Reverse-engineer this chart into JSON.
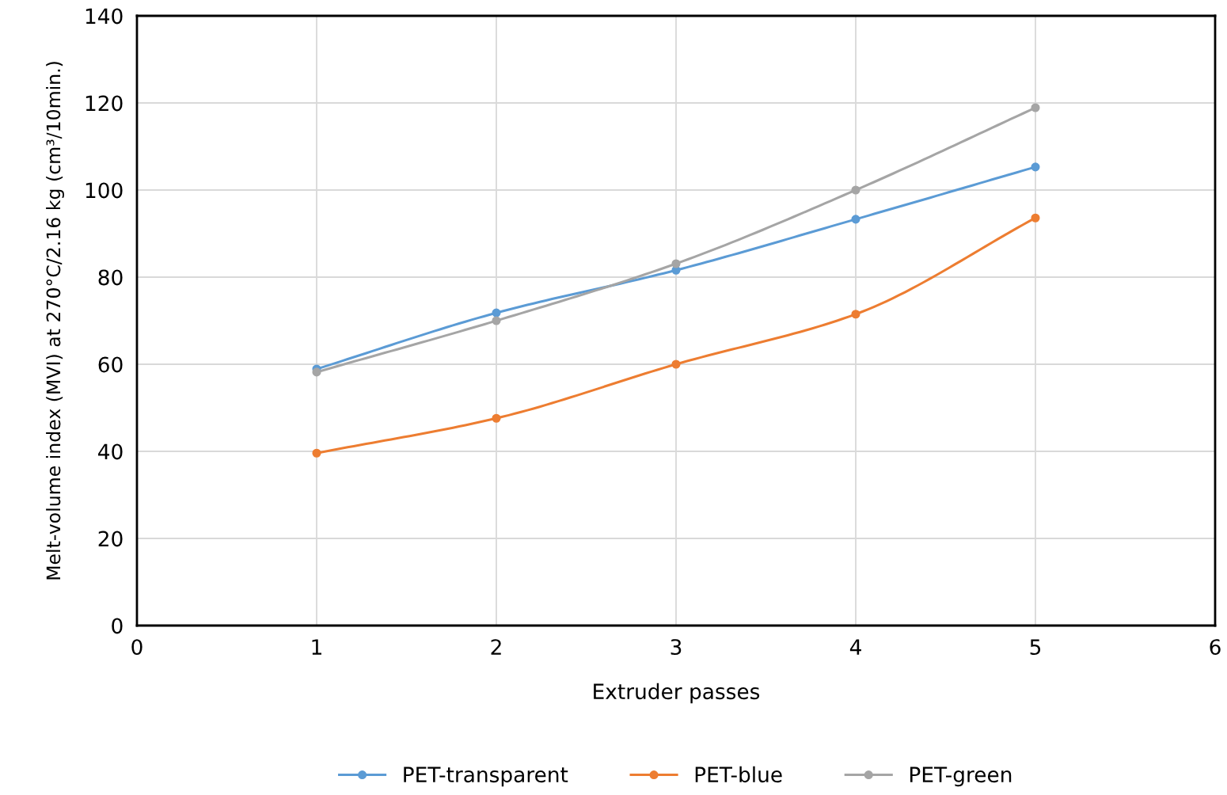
{
  "chart_data": {
    "type": "line",
    "xlabel": "Extruder passes",
    "ylabel": "Melt-volume index (MVI) at 270°C/2.16 kg (cm³/10min.)",
    "x": [
      1,
      2,
      3,
      4,
      5
    ],
    "series": [
      {
        "name": "PET-transparent",
        "color": "#5b9bd5",
        "values": [
          58.9,
          71.8,
          81.6,
          93.3,
          105.3
        ]
      },
      {
        "name": "PET-blue",
        "color": "#ed7d31",
        "values": [
          39.6,
          47.6,
          60.0,
          71.5,
          93.6
        ]
      },
      {
        "name": "PET-green",
        "color": "#a5a5a5",
        "values": [
          58.2,
          70.0,
          83.1,
          100.0,
          118.9
        ]
      }
    ],
    "xlim": [
      0,
      6
    ],
    "xticks": [
      0,
      1,
      2,
      3,
      4,
      5,
      6
    ],
    "ylim": [
      0,
      140
    ],
    "yticks": [
      0,
      20,
      40,
      60,
      80,
      100,
      120,
      140
    ],
    "grid": true,
    "legend": "bottom",
    "marker": "circle",
    "line_style": "solid"
  }
}
